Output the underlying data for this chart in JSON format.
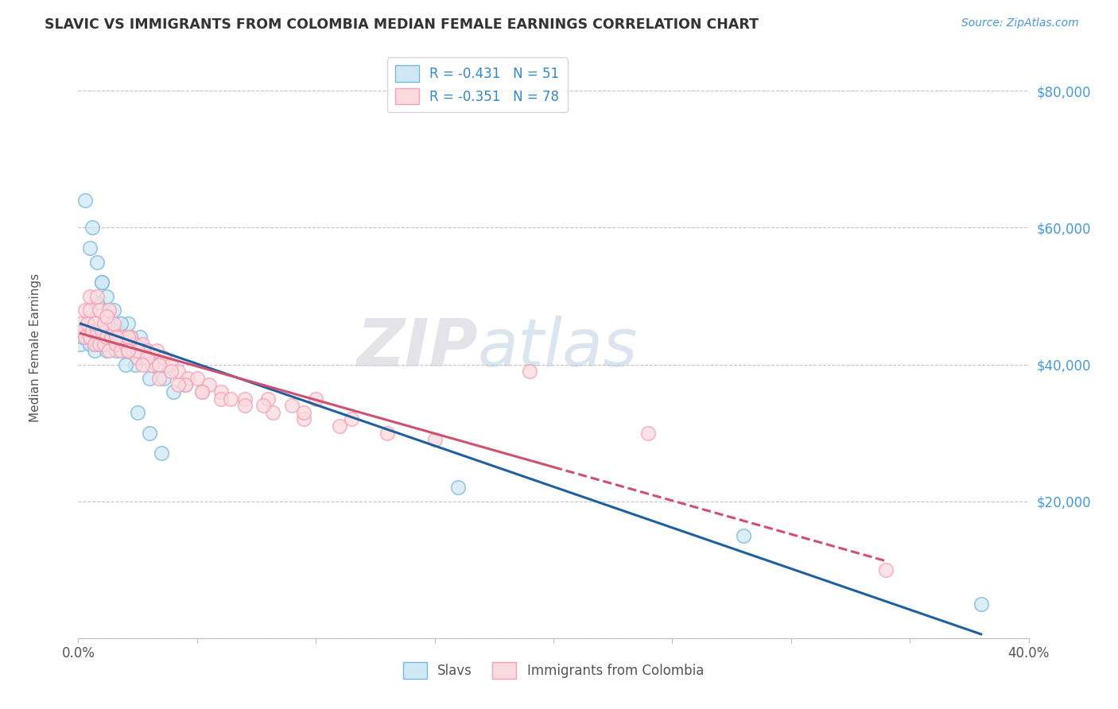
{
  "title": "SLAVIC VS IMMIGRANTS FROM COLOMBIA MEDIAN FEMALE EARNINGS CORRELATION CHART",
  "source": "Source: ZipAtlas.com",
  "ylabel": "Median Female Earnings",
  "legend_label1": "Slavs",
  "legend_label2": "Immigrants from Colombia",
  "r1": -0.431,
  "n1": 51,
  "r2": -0.351,
  "n2": 78,
  "color1": "#7ab8d9",
  "color2": "#f4a0b8",
  "color1_face": "#d0e8f5",
  "color2_face": "#fadadd",
  "line_color1": "#2060a0",
  "line_color2": "#d05070",
  "watermark_zip": "ZIP",
  "watermark_atlas": "atlas",
  "xlim": [
    0.0,
    0.4
  ],
  "ylim": [
    0,
    85000
  ],
  "yticks": [
    0,
    20000,
    40000,
    60000,
    80000
  ],
  "ytick_labels": [
    "",
    "$20,000",
    "$40,000",
    "$60,000",
    "$80,000"
  ],
  "xticks": [
    0.0,
    0.05,
    0.1,
    0.15,
    0.2,
    0.25,
    0.3,
    0.35,
    0.4
  ],
  "xtick_labels": [
    "0.0%",
    "",
    "",
    "",
    "",
    "",
    "",
    "",
    "40.0%"
  ],
  "slavs_x": [
    0.001,
    0.002,
    0.003,
    0.004,
    0.005,
    0.006,
    0.007,
    0.008,
    0.009,
    0.01,
    0.011,
    0.012,
    0.013,
    0.014,
    0.015,
    0.016,
    0.017,
    0.018,
    0.019,
    0.02,
    0.021,
    0.022,
    0.024,
    0.026,
    0.028,
    0.03,
    0.033,
    0.036,
    0.04,
    0.045,
    0.003,
    0.005,
    0.006,
    0.008,
    0.01,
    0.012,
    0.015,
    0.018,
    0.022,
    0.026,
    0.008,
    0.01,
    0.013,
    0.016,
    0.02,
    0.025,
    0.03,
    0.035,
    0.16,
    0.28,
    0.38
  ],
  "slavs_y": [
    43000,
    44000,
    45000,
    46000,
    43000,
    45000,
    42000,
    43000,
    45000,
    44000,
    43000,
    42000,
    44000,
    46000,
    44000,
    43000,
    45000,
    43000,
    42000,
    44000,
    46000,
    43000,
    40000,
    44000,
    42000,
    38000,
    40000,
    38000,
    36000,
    37000,
    64000,
    57000,
    60000,
    55000,
    52000,
    50000,
    48000,
    46000,
    44000,
    42000,
    49000,
    52000,
    44000,
    42000,
    40000,
    33000,
    30000,
    27000,
    22000,
    15000,
    5000
  ],
  "colombia_x": [
    0.001,
    0.002,
    0.003,
    0.004,
    0.005,
    0.006,
    0.007,
    0.008,
    0.009,
    0.01,
    0.011,
    0.012,
    0.013,
    0.014,
    0.015,
    0.016,
    0.017,
    0.018,
    0.019,
    0.02,
    0.021,
    0.022,
    0.023,
    0.024,
    0.025,
    0.027,
    0.029,
    0.031,
    0.033,
    0.036,
    0.039,
    0.042,
    0.046,
    0.05,
    0.055,
    0.06,
    0.07,
    0.08,
    0.09,
    0.1,
    0.003,
    0.005,
    0.007,
    0.009,
    0.011,
    0.013,
    0.015,
    0.018,
    0.021,
    0.025,
    0.029,
    0.034,
    0.039,
    0.045,
    0.052,
    0.06,
    0.07,
    0.082,
    0.095,
    0.11,
    0.13,
    0.15,
    0.005,
    0.008,
    0.012,
    0.016,
    0.021,
    0.027,
    0.034,
    0.042,
    0.052,
    0.064,
    0.078,
    0.095,
    0.115,
    0.19,
    0.24,
    0.34
  ],
  "colombia_y": [
    46000,
    45000,
    44000,
    46000,
    44000,
    45000,
    43000,
    45000,
    43000,
    45000,
    43000,
    44000,
    42000,
    44000,
    45000,
    43000,
    44000,
    42000,
    44000,
    43000,
    42000,
    44000,
    42000,
    43000,
    41000,
    43000,
    42000,
    40000,
    42000,
    41000,
    40000,
    39000,
    38000,
    38000,
    37000,
    36000,
    35000,
    35000,
    34000,
    35000,
    48000,
    48000,
    46000,
    48000,
    46000,
    48000,
    46000,
    44000,
    44000,
    42000,
    41000,
    40000,
    39000,
    37000,
    36000,
    35000,
    34000,
    33000,
    32000,
    31000,
    30000,
    29000,
    50000,
    50000,
    47000,
    44000,
    42000,
    40000,
    38000,
    37000,
    36000,
    35000,
    34000,
    33000,
    32000,
    39000,
    30000,
    10000
  ]
}
